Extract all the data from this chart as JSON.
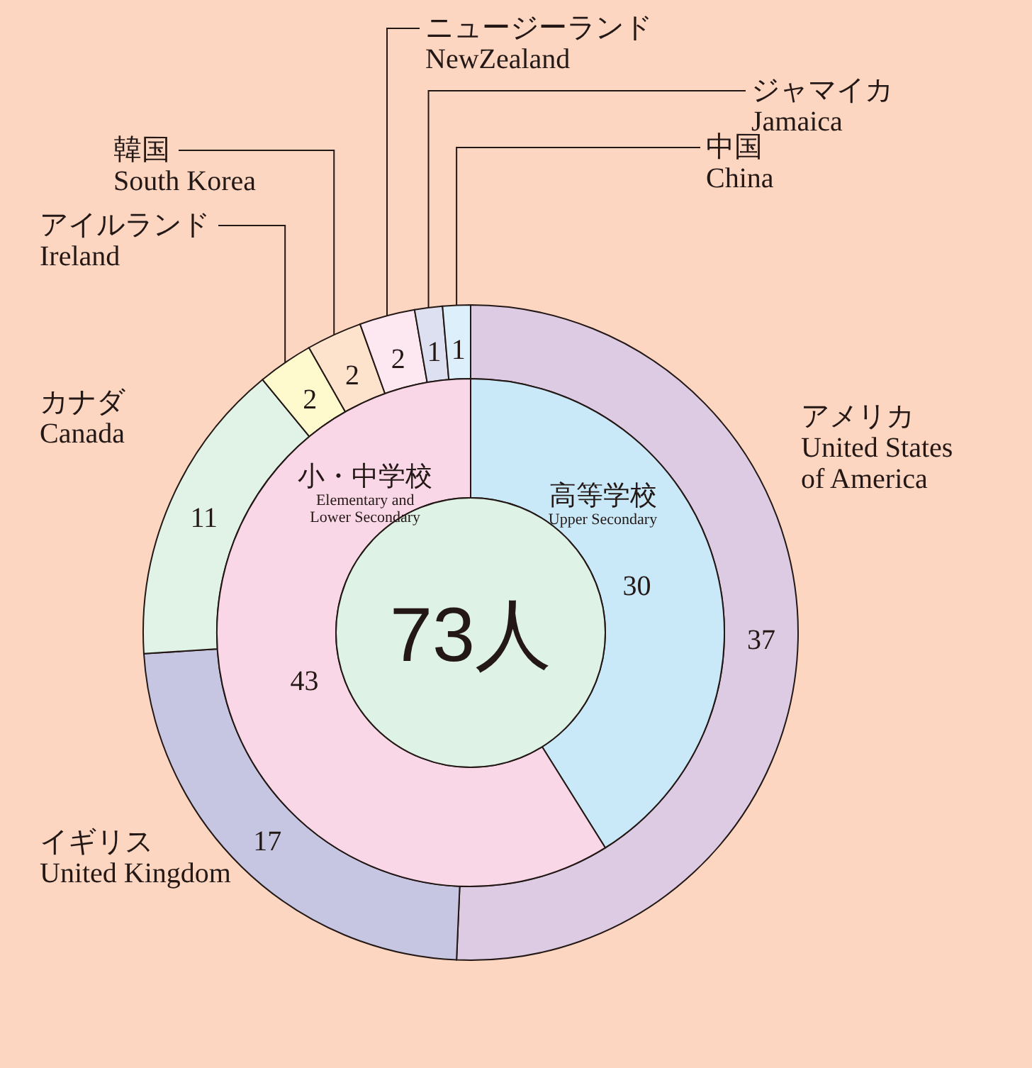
{
  "chart_data": [
    {
      "type": "donut",
      "categories": [
        "アメリカ\nUnited States\nof America",
        "イギリス\nUnited Kingdom",
        "カナダ\nCanada",
        "アイルランド\nIreland",
        "韓国\nSouth Korea",
        "ニュージーランド\nNewZealand",
        "ジャマイカ\nJamaica",
        "中国\nChina"
      ],
      "values": [
        37,
        17,
        11,
        2,
        2,
        2,
        1,
        1
      ],
      "colors": [
        "#dccbe2",
        "#c6c6e2",
        "#e1f3e6",
        "#fefacd",
        "#fde3cb",
        "#fde7f1",
        "#dde0f0",
        "#ddeffa"
      ],
      "data_labels": true
    },
    {
      "type": "donut",
      "categories": [
        "高等学校\nUpper Secondary",
        "小・中学校\nElementary and\nLower Secondary"
      ],
      "values": [
        30,
        43
      ],
      "colors": [
        "#c9e9f8",
        "#f9d7e7"
      ],
      "data_labels": true,
      "annotations": [
        "73人"
      ]
    }
  ]
}
